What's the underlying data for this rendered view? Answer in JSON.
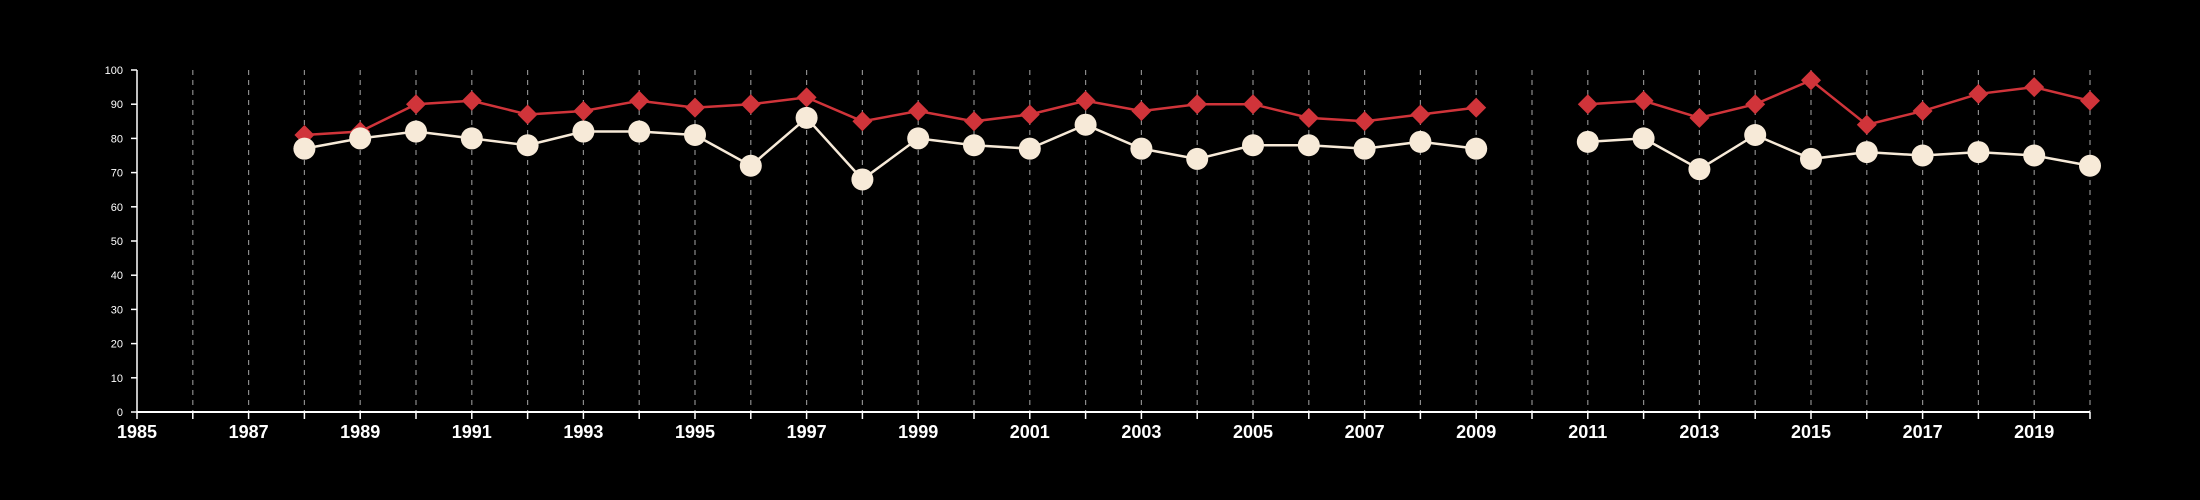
{
  "chart_data": {
    "type": "line",
    "title": "",
    "xlabel": "",
    "ylabel": "",
    "xlim": [
      1985,
      2020
    ],
    "ylim": [
      0,
      100
    ],
    "x_ticks": [
      "1985",
      "1987",
      "1989",
      "1991",
      "1993",
      "1995",
      "1997",
      "1999",
      "2001",
      "2003",
      "2005",
      "2007",
      "2009",
      "2011",
      "2013",
      "2015",
      "2017",
      "2019"
    ],
    "y_ticks": [
      "0",
      "10",
      "20",
      "30",
      "40",
      "50",
      "60",
      "70",
      "80",
      "90",
      "100"
    ],
    "grid": "vertical dashed lines at each year",
    "legend": "none",
    "series": [
      {
        "color": "#d0343a",
        "marker": "diamond",
        "x": [
          1988,
          1989,
          1990,
          1991,
          1992,
          1993,
          1994,
          1995,
          1996,
          1997,
          1998,
          1999,
          2000,
          2001,
          2002,
          2003,
          2004,
          2005,
          2006,
          2007,
          2008,
          2009,
          null,
          2011,
          2012,
          2013,
          2014,
          2015,
          2016,
          2017,
          2018,
          2019,
          2020
        ],
        "values": [
          81,
          82,
          90,
          91,
          87,
          88,
          91,
          89,
          90,
          92,
          85,
          88,
          85,
          87,
          91,
          88,
          90,
          90,
          86,
          85,
          87,
          89,
          null,
          90,
          91,
          86,
          90,
          97,
          84,
          88,
          93,
          95,
          91
        ]
      },
      {
        "color": "#f7ead8",
        "marker": "circle",
        "x": [
          1988,
          1989,
          1990,
          1991,
          1992,
          1993,
          1994,
          1995,
          1996,
          1997,
          1998,
          1999,
          2000,
          2001,
          2002,
          2003,
          2004,
          2005,
          2006,
          2007,
          2008,
          2009,
          null,
          2011,
          2012,
          2013,
          2014,
          2015,
          2016,
          2017,
          2018,
          2019,
          2020
        ],
        "values": [
          77,
          80,
          82,
          80,
          78,
          82,
          82,
          81,
          72,
          86,
          68,
          80,
          78,
          77,
          84,
          77,
          74,
          78,
          78,
          77,
          79,
          77,
          null,
          79,
          80,
          71,
          81,
          74,
          76,
          75,
          76,
          75,
          72
        ]
      }
    ]
  }
}
